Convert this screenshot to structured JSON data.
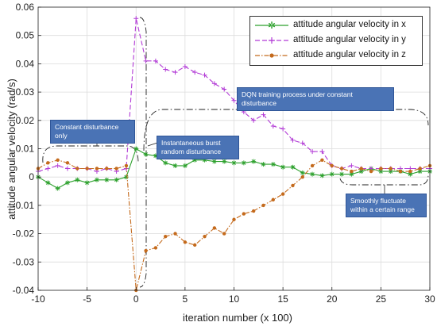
{
  "chart_data": {
    "type": "line",
    "xlabel": "iteration number (x 100)",
    "ylabel": "attitude angular velocity (rad/s)",
    "xlim": [
      -10,
      30
    ],
    "ylim": [
      -0.04,
      0.06
    ],
    "xticks": [
      -10,
      -5,
      0,
      5,
      10,
      15,
      20,
      25,
      30
    ],
    "yticks": [
      -0.04,
      -0.03,
      -0.02,
      -0.01,
      0,
      0.01,
      0.02,
      0.03,
      0.04,
      0.05,
      0.06
    ],
    "xtick_labels": [
      "-10",
      "-5",
      "0",
      "5",
      "10",
      "15",
      "20",
      "25",
      "30"
    ],
    "ytick_labels": [
      "-0.04",
      "-0.03",
      "-0.02",
      "-0.01",
      "0",
      "0.01",
      "0.02",
      "0.03",
      "0.04",
      "0.05",
      "0.06"
    ],
    "grid": true,
    "legend_position": "top-right",
    "series": [
      {
        "name": "attitude angular velocity in x",
        "color": "#2ca02c",
        "line_style": "solid",
        "marker": "star",
        "points": [
          [
            -10,
            0
          ],
          [
            -9,
            -0.002
          ],
          [
            -8,
            -0.004
          ],
          [
            -7,
            -0.002
          ],
          [
            -6,
            -0.001
          ],
          [
            -5,
            -0.002
          ],
          [
            -4,
            -0.001
          ],
          [
            -3,
            -0.001
          ],
          [
            -2,
            -0.001
          ],
          [
            -1,
            0
          ],
          [
            0,
            0.01
          ],
          [
            1,
            0.008
          ],
          [
            2,
            0.0075
          ],
          [
            3,
            0.005
          ],
          [
            4,
            0.004
          ],
          [
            5,
            0.004
          ],
          [
            6,
            0.006
          ],
          [
            7,
            0.006
          ],
          [
            8,
            0.0055
          ],
          [
            9,
            0.0055
          ],
          [
            10,
            0.005
          ],
          [
            11,
            0.005
          ],
          [
            12,
            0.0055
          ],
          [
            13,
            0.0045
          ],
          [
            14,
            0.0045
          ],
          [
            15,
            0.0035
          ],
          [
            16,
            0.0035
          ],
          [
            17,
            0.0015
          ],
          [
            18,
            0.001
          ],
          [
            19,
            0.0005
          ],
          [
            20,
            0.001
          ],
          [
            21,
            0.001
          ],
          [
            22,
            0.001
          ],
          [
            23,
            0.002
          ],
          [
            24,
            0.003
          ],
          [
            25,
            0.002
          ],
          [
            26,
            0.002
          ],
          [
            27,
            0.002
          ],
          [
            28,
            0.001
          ],
          [
            29,
            0.002
          ],
          [
            30,
            0.002
          ]
        ]
      },
      {
        "name": "attitude angular velocity in y",
        "color": "#b23bd6",
        "line_style": "dashed",
        "marker": "plus",
        "points": [
          [
            -10,
            0.002
          ],
          [
            -9,
            0.003
          ],
          [
            -8,
            0.004
          ],
          [
            -7,
            0.003
          ],
          [
            -6,
            0.003
          ],
          [
            -5,
            0.003
          ],
          [
            -4,
            0.002
          ],
          [
            -3,
            0.003
          ],
          [
            -2,
            0.002
          ],
          [
            -1,
            0.003
          ],
          [
            0,
            0.056
          ],
          [
            1,
            0.041
          ],
          [
            2,
            0.041
          ],
          [
            3,
            0.038
          ],
          [
            4,
            0.037
          ],
          [
            5,
            0.039
          ],
          [
            6,
            0.037
          ],
          [
            7,
            0.036
          ],
          [
            8,
            0.033
          ],
          [
            9,
            0.031
          ],
          [
            10,
            0.027
          ],
          [
            11,
            0.023
          ],
          [
            12,
            0.02
          ],
          [
            13,
            0.022
          ],
          [
            14,
            0.018
          ],
          [
            15,
            0.017
          ],
          [
            16,
            0.013
          ],
          [
            17,
            0.012
          ],
          [
            18,
            0.009
          ],
          [
            19,
            0.009
          ],
          [
            20,
            0.004
          ],
          [
            21,
            0.003
          ],
          [
            22,
            0.004
          ],
          [
            23,
            0.003
          ],
          [
            24,
            0.003
          ],
          [
            25,
            0.003
          ],
          [
            26,
            0.003
          ],
          [
            27,
            0.003
          ],
          [
            28,
            0.003
          ],
          [
            29,
            0.003
          ],
          [
            30,
            0.003
          ]
        ]
      },
      {
        "name": "attitude angular velocity in z",
        "color": "#c46a1c",
        "line_style": "dashdot",
        "marker": "dot",
        "points": [
          [
            -10,
            0.003
          ],
          [
            -9,
            0.005
          ],
          [
            -8,
            0.006
          ],
          [
            -7,
            0.005
          ],
          [
            -6,
            0.003
          ],
          [
            -5,
            0.003
          ],
          [
            -4,
            0.003
          ],
          [
            -3,
            0.003
          ],
          [
            -2,
            0.003
          ],
          [
            -1,
            0.004
          ],
          [
            0,
            -0.04
          ],
          [
            1,
            -0.026
          ],
          [
            2,
            -0.025
          ],
          [
            3,
            -0.021
          ],
          [
            4,
            -0.02
          ],
          [
            5,
            -0.023
          ],
          [
            6,
            -0.024
          ],
          [
            7,
            -0.021
          ],
          [
            8,
            -0.018
          ],
          [
            9,
            -0.02
          ],
          [
            10,
            -0.015
          ],
          [
            11,
            -0.013
          ],
          [
            12,
            -0.012
          ],
          [
            13,
            -0.01
          ],
          [
            14,
            -0.008
          ],
          [
            15,
            -0.006
          ],
          [
            16,
            -0.003
          ],
          [
            17,
            0.0
          ],
          [
            18,
            0.004
          ],
          [
            19,
            0.006
          ],
          [
            20,
            0.004
          ],
          [
            21,
            0.003
          ],
          [
            22,
            0.002
          ],
          [
            23,
            0.003
          ],
          [
            24,
            0.002
          ],
          [
            25,
            0.003
          ],
          [
            26,
            0.003
          ],
          [
            27,
            0.002
          ],
          [
            28,
            0.002
          ],
          [
            29,
            0.003
          ],
          [
            30,
            0.004
          ]
        ]
      }
    ],
    "annotations": [
      "Constant disturbance only",
      "Instantaneous burst random disturbance",
      "DQN training process under constant disturbance",
      "Smoothly fluctuate within a certain range"
    ]
  },
  "annotation_text": {
    "constant": "Constant disturbance only",
    "burst": "Instantaneous burst random disturbance",
    "dqn": "DQN training process under constant disturbance",
    "smooth": "Smoothly fluctuate within a certain range"
  },
  "legend": {
    "x_label": "attitude angular velocity in x",
    "y_label": "attitude angular velocity in y",
    "z_label": "attitude angular velocity in z"
  },
  "axis_text": {
    "xlabel": "iteration number (x 100)",
    "ylabel": "attitude angular velocity (rad/s)"
  }
}
